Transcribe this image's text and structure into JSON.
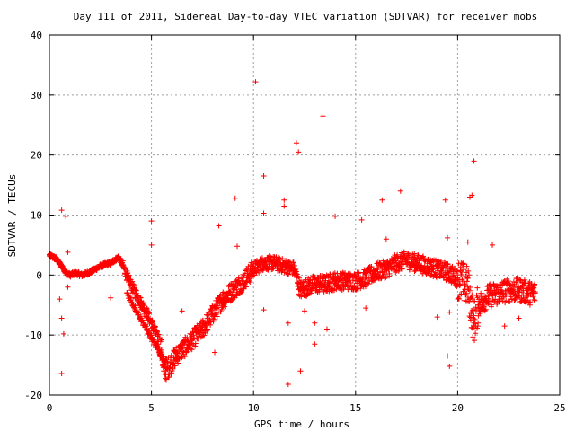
{
  "chart_data": {
    "type": "scatter",
    "title": "Day 111 of 2011, Sidereal Day-to-day VTEC variation (SDTVAR) for receiver mobs",
    "xlabel": "GPS time / hours",
    "ylabel": "SDTVAR / TECUs",
    "xlim": [
      0,
      25
    ],
    "ylim": [
      -20,
      40
    ],
    "x_ticks": [
      "0",
      "5",
      "10",
      "15",
      "20",
      "25"
    ],
    "y_ticks": [
      "-20",
      "-10",
      "0",
      "10",
      "20",
      "30",
      "40"
    ],
    "grid": true,
    "marker": "+",
    "color": "#ff0000",
    "series": [
      {
        "values": [
          [
            0.0,
            3.3
          ],
          [
            0.3,
            2.8
          ],
          [
            0.6,
            1.5
          ],
          [
            0.8,
            0.5
          ],
          [
            1.0,
            0.0
          ],
          [
            1.3,
            0.3
          ],
          [
            1.6,
            0.0
          ],
          [
            2.0,
            0.5
          ],
          [
            2.5,
            1.5
          ],
          [
            3.0,
            2.0
          ],
          [
            3.4,
            3.0
          ],
          [
            3.6,
            1.5
          ],
          [
            3.9,
            -1.0
          ],
          [
            4.3,
            -3.5
          ],
          [
            4.8,
            -6.5
          ],
          [
            5.2,
            -9.5
          ],
          [
            5.5,
            -12.5
          ],
          [
            5.6,
            -16.0
          ],
          [
            5.8,
            -15.5
          ],
          [
            6.2,
            -13.5
          ],
          [
            6.8,
            -11.5
          ],
          [
            7.5,
            -9.0
          ],
          [
            8.0,
            -6.5
          ],
          [
            8.5,
            -4.0
          ],
          [
            9.0,
            -2.5
          ],
          [
            9.5,
            -1.0
          ],
          [
            10.0,
            1.0
          ],
          [
            10.5,
            2.0
          ],
          [
            11.0,
            2.0
          ],
          [
            11.5,
            1.5
          ],
          [
            12.0,
            1.0
          ],
          [
            12.3,
            -2.5
          ],
          [
            12.6,
            -2.0
          ],
          [
            13.0,
            -1.5
          ],
          [
            13.5,
            -1.5
          ],
          [
            14.0,
            -1.0
          ],
          [
            14.5,
            -1.0
          ],
          [
            15.0,
            -1.0
          ],
          [
            15.5,
            -0.5
          ],
          [
            16.0,
            0.5
          ],
          [
            16.5,
            1.0
          ],
          [
            17.0,
            2.0
          ],
          [
            17.5,
            2.5
          ],
          [
            18.0,
            2.0
          ],
          [
            18.5,
            1.5
          ],
          [
            19.0,
            1.0
          ],
          [
            19.5,
            0.5
          ],
          [
            20.0,
            -0.5
          ],
          [
            20.5,
            -2.0
          ],
          [
            20.8,
            -8.0
          ],
          [
            21.0,
            -5.0
          ],
          [
            21.5,
            -3.5
          ],
          [
            22.0,
            -3.0
          ],
          [
            22.5,
            -2.5
          ],
          [
            23.0,
            -2.5
          ],
          [
            23.5,
            -3.0
          ],
          [
            23.8,
            -3.0
          ]
        ],
        "lower_branch": [
          [
            3.8,
            -3.0
          ],
          [
            4.2,
            -5.5
          ],
          [
            4.6,
            -8.0
          ],
          [
            5.0,
            -10.5
          ],
          [
            5.4,
            -13.0
          ],
          [
            5.7,
            -14.5
          ]
        ],
        "outliers": [
          [
            0.6,
            10.8
          ],
          [
            0.8,
            9.8
          ],
          [
            0.6,
            -16.4
          ],
          [
            0.7,
            -9.8
          ],
          [
            0.6,
            -7.2
          ],
          [
            0.5,
            -4.0
          ],
          [
            0.9,
            3.8
          ],
          [
            0.9,
            -2.0
          ],
          [
            3.0,
            -3.8
          ],
          [
            5.0,
            9.0
          ],
          [
            5.0,
            5.0
          ],
          [
            6.5,
            -6.0
          ],
          [
            8.1,
            -12.9
          ],
          [
            8.3,
            8.2
          ],
          [
            9.1,
            12.8
          ],
          [
            9.2,
            4.8
          ],
          [
            10.1,
            32.2
          ],
          [
            10.5,
            16.5
          ],
          [
            10.5,
            10.3
          ],
          [
            10.5,
            -5.8
          ],
          [
            11.0,
            2.0
          ],
          [
            11.5,
            12.5
          ],
          [
            11.5,
            11.5
          ],
          [
            11.7,
            -8.0
          ],
          [
            11.7,
            -18.2
          ],
          [
            12.1,
            22.0
          ],
          [
            12.2,
            20.5
          ],
          [
            12.3,
            -16.0
          ],
          [
            12.5,
            -6.0
          ],
          [
            13.0,
            -11.5
          ],
          [
            13.0,
            -8.0
          ],
          [
            13.4,
            26.5
          ],
          [
            13.6,
            -9.0
          ],
          [
            14.0,
            9.8
          ],
          [
            15.3,
            9.2
          ],
          [
            15.5,
            -5.5
          ],
          [
            16.3,
            12.5
          ],
          [
            16.5,
            6.0
          ],
          [
            17.2,
            14.0
          ],
          [
            19.0,
            -7.0
          ],
          [
            19.4,
            12.5
          ],
          [
            19.5,
            6.2
          ],
          [
            19.6,
            -6.2
          ],
          [
            19.5,
            -13.5
          ],
          [
            19.6,
            -15.2
          ],
          [
            20.5,
            5.5
          ],
          [
            20.6,
            13.0
          ],
          [
            20.7,
            13.3
          ],
          [
            20.8,
            19.0
          ],
          [
            21.0,
            -8.0
          ],
          [
            21.7,
            5.0
          ],
          [
            22.3,
            -8.5
          ],
          [
            23.0,
            -7.2
          ]
        ]
      }
    ]
  }
}
